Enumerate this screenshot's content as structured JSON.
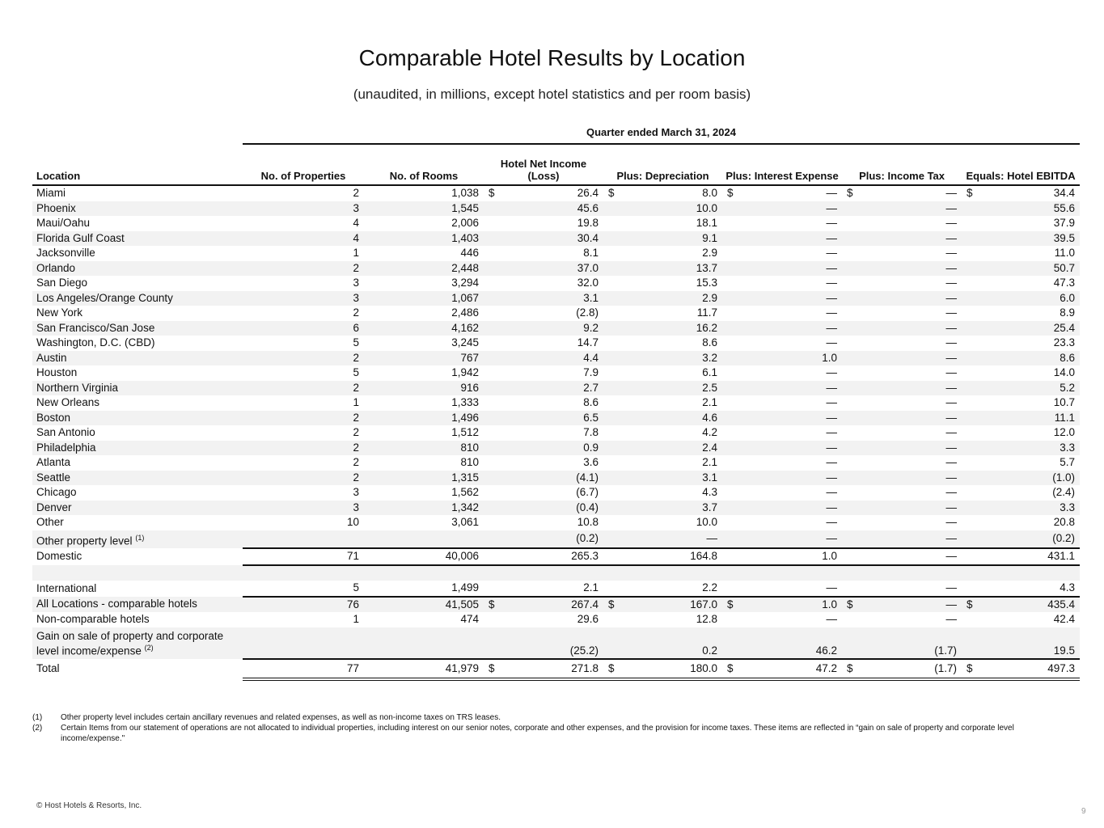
{
  "title": "Comparable Hotel Results by Location",
  "subtitle": "(unaudited, in millions, except hotel statistics and per room basis)",
  "period": "Quarter ended March 31, 2024",
  "columns": [
    "Location",
    "No. of Properties",
    "No. of Rooms",
    "Hotel Net Income (Loss)",
    "Plus: Depreciation",
    "Plus: Interest Expense",
    "Plus: Income Tax",
    "Equals: Hotel EBITDA"
  ],
  "rows": [
    {
      "location": "Miami",
      "values": [
        "2",
        "1,038",
        "26.4",
        "8.0",
        "—",
        "—",
        "34.4"
      ],
      "dollar": true
    },
    {
      "location": "Phoenix",
      "values": [
        "3",
        "1,545",
        "45.6",
        "10.0",
        "—",
        "—",
        "55.6"
      ]
    },
    {
      "location": "Maui/Oahu",
      "values": [
        "4",
        "2,006",
        "19.8",
        "18.1",
        "—",
        "—",
        "37.9"
      ]
    },
    {
      "location": "Florida Gulf Coast",
      "values": [
        "4",
        "1,403",
        "30.4",
        "9.1",
        "—",
        "—",
        "39.5"
      ]
    },
    {
      "location": "Jacksonville",
      "values": [
        "1",
        "446",
        "8.1",
        "2.9",
        "—",
        "—",
        "11.0"
      ]
    },
    {
      "location": "Orlando",
      "values": [
        "2",
        "2,448",
        "37.0",
        "13.7",
        "—",
        "—",
        "50.7"
      ]
    },
    {
      "location": "San Diego",
      "values": [
        "3",
        "3,294",
        "32.0",
        "15.3",
        "—",
        "—",
        "47.3"
      ]
    },
    {
      "location": "Los Angeles/Orange County",
      "values": [
        "3",
        "1,067",
        "3.1",
        "2.9",
        "—",
        "—",
        "6.0"
      ]
    },
    {
      "location": "New York",
      "values": [
        "2",
        "2,486",
        "(2.8)",
        "11.7",
        "—",
        "—",
        "8.9"
      ]
    },
    {
      "location": "San Francisco/San Jose",
      "values": [
        "6",
        "4,162",
        "9.2",
        "16.2",
        "—",
        "—",
        "25.4"
      ]
    },
    {
      "location": "Washington, D.C. (CBD)",
      "values": [
        "5",
        "3,245",
        "14.7",
        "8.6",
        "—",
        "—",
        "23.3"
      ]
    },
    {
      "location": "Austin",
      "values": [
        "2",
        "767",
        "4.4",
        "3.2",
        "1.0",
        "—",
        "8.6"
      ]
    },
    {
      "location": "Houston",
      "values": [
        "5",
        "1,942",
        "7.9",
        "6.1",
        "—",
        "—",
        "14.0"
      ]
    },
    {
      "location": "Northern Virginia",
      "values": [
        "2",
        "916",
        "2.7",
        "2.5",
        "—",
        "—",
        "5.2"
      ]
    },
    {
      "location": "New Orleans",
      "values": [
        "1",
        "1,333",
        "8.6",
        "2.1",
        "—",
        "—",
        "10.7"
      ]
    },
    {
      "location": "Boston",
      "values": [
        "2",
        "1,496",
        "6.5",
        "4.6",
        "—",
        "—",
        "11.1"
      ]
    },
    {
      "location": "San Antonio",
      "values": [
        "2",
        "1,512",
        "7.8",
        "4.2",
        "—",
        "—",
        "12.0"
      ]
    },
    {
      "location": "Philadelphia",
      "values": [
        "2",
        "810",
        "0.9",
        "2.4",
        "—",
        "—",
        "3.3"
      ]
    },
    {
      "location": "Atlanta",
      "values": [
        "2",
        "810",
        "3.6",
        "2.1",
        "—",
        "—",
        "5.7"
      ]
    },
    {
      "location": "Seattle",
      "values": [
        "2",
        "1,315",
        "(4.1)",
        "3.1",
        "—",
        "—",
        "(1.0)"
      ]
    },
    {
      "location": "Chicago",
      "values": [
        "3",
        "1,562",
        "(6.7)",
        "4.3",
        "—",
        "—",
        "(2.4)"
      ]
    },
    {
      "location": "Denver",
      "values": [
        "3",
        "1,342",
        "(0.4)",
        "3.7",
        "—",
        "—",
        "3.3"
      ]
    },
    {
      "location": "Other",
      "values": [
        "10",
        "3,061",
        "10.8",
        "10.0",
        "—",
        "—",
        "20.8"
      ]
    },
    {
      "location": "Other property level",
      "note": "(1)",
      "values": [
        "",
        "",
        "(0.2)",
        "—",
        "—",
        "—",
        "(0.2)"
      ]
    },
    {
      "location": "Domestic",
      "values": [
        "71",
        "40,006",
        "265.3",
        "164.8",
        "1.0",
        "—",
        "431.1"
      ],
      "style": "topline"
    },
    {
      "location": "",
      "values": [
        "",
        "",
        "",
        "",
        "",
        "",
        ""
      ],
      "style": "topline"
    },
    {
      "location": "International",
      "values": [
        "5",
        "1,499",
        "2.1",
        "2.2",
        "—",
        "—",
        "4.3"
      ]
    },
    {
      "location": "All Locations - comparable hotels",
      "values": [
        "76",
        "41,505",
        "267.4",
        "167.0",
        "1.0",
        "—",
        "435.4"
      ],
      "dollar": true,
      "style": "topline"
    },
    {
      "location": "Non-comparable hotels",
      "values": [
        "1",
        "474",
        "29.6",
        "12.8",
        "—",
        "—",
        "42.4"
      ]
    },
    {
      "location": "Gain on sale of property and corporate level income/expense",
      "note": "(2)",
      "values": [
        "",
        "",
        "(25.2)",
        "0.2",
        "46.2",
        "(1.7)",
        "19.5"
      ],
      "style": "tall"
    },
    {
      "location": "Total",
      "values": [
        "77",
        "41,979",
        "271.8",
        "180.0",
        "47.2",
        "(1.7)",
        "497.3"
      ],
      "dollar": true,
      "style": "topline total"
    }
  ],
  "dollar_sign": "$",
  "footnotes": [
    {
      "mark": "(1)",
      "text": "Other property level includes certain ancillary revenues and related expenses, as well as non-income taxes on TRS leases."
    },
    {
      "mark": "(2)",
      "text": "Certain Items from our statement of operations are not allocated to individual properties, including interest on our senior notes, corporate and other expenses, and the provision for income taxes. These items are reflected in “gain on sale of property and corporate level income/expense.\""
    }
  ],
  "copyright": "© Host Hotels & Resorts, Inc.",
  "page_number": "9"
}
